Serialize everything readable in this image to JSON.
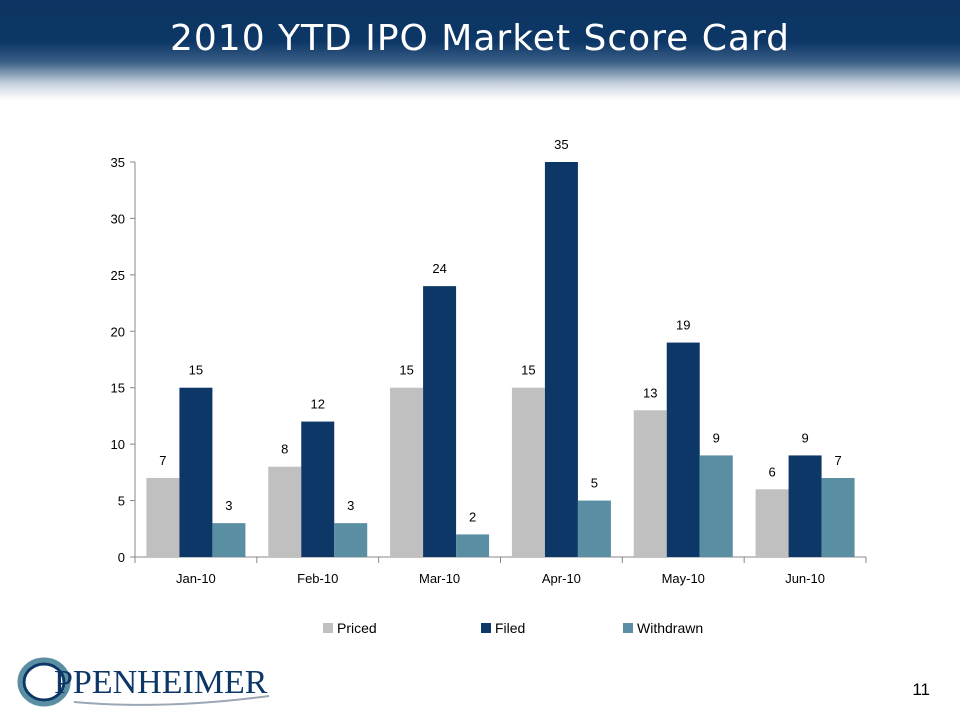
{
  "title": "2010 YTD IPO Market Score Card",
  "page_number": "11",
  "logo_text": "PPENHEIMER",
  "colors": {
    "header": "#0d3766",
    "priced": "#c0c0c0",
    "filed": "#0d3766",
    "withdrawn": "#5a8ea3"
  },
  "chart_data": {
    "type": "bar",
    "title": "",
    "xlabel": "",
    "ylabel": "",
    "categories": [
      "Jan-10",
      "Feb-10",
      "Mar-10",
      "Apr-10",
      "May-10",
      "Jun-10"
    ],
    "series": [
      {
        "name": "Priced",
        "values": [
          7,
          8,
          15,
          15,
          13,
          6
        ]
      },
      {
        "name": "Filed",
        "values": [
          15,
          12,
          24,
          35,
          19,
          9
        ]
      },
      {
        "name": "Withdrawn",
        "values": [
          3,
          3,
          2,
          5,
          9,
          7
        ]
      }
    ],
    "ylim": [
      0,
      35
    ],
    "yticks": [
      0,
      5,
      10,
      15,
      20,
      25,
      30,
      35
    ],
    "legend_position": "bottom",
    "grid": false
  }
}
